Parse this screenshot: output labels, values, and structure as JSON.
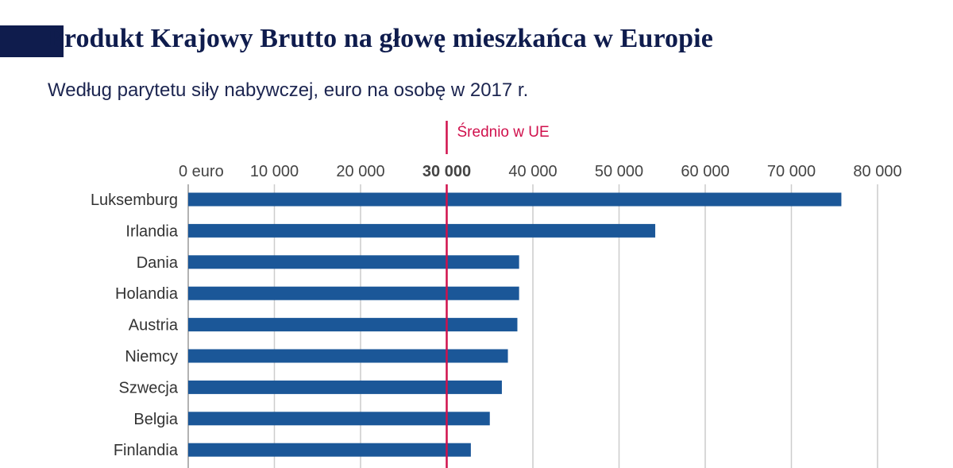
{
  "header": {
    "title": "Produkt Krajowy Brutto na głowę mieszkańca w Europie",
    "subtitle": "Według parytetu siły nabywczej, euro na osobę w 2017 r."
  },
  "chart_data": {
    "type": "bar",
    "orientation": "horizontal",
    "title": "Produkt Krajowy Brutto na głowę mieszkańca w Europie",
    "subtitle": "Według parytetu siły nabywczej, euro na osobę w 2017 r.",
    "categories": [
      "Luksemburg",
      "Irlandia",
      "Dania",
      "Holandia",
      "Austria",
      "Niemcy",
      "Szwecja",
      "Belgia",
      "Finlandia"
    ],
    "values": [
      75800,
      54200,
      38400,
      38400,
      38200,
      37100,
      36400,
      35000,
      32800
    ],
    "xlim": [
      0,
      80000
    ],
    "x_ticks": [
      {
        "value": 0,
        "label": "0 euro"
      },
      {
        "value": 10000,
        "label": "10 000"
      },
      {
        "value": 20000,
        "label": "20 000"
      },
      {
        "value": 30000,
        "label": "30 000"
      },
      {
        "value": 40000,
        "label": "40 000"
      },
      {
        "value": 50000,
        "label": "50 000"
      },
      {
        "value": 60000,
        "label": "60 000"
      },
      {
        "value": 70000,
        "label": "70 000"
      },
      {
        "value": 80000,
        "label": "80 000"
      }
    ],
    "axis_position": "top",
    "grid": true,
    "reference_line": {
      "value": 30000,
      "label": "Średnio w UE",
      "color": "#d0104c"
    },
    "colors": {
      "bar": "#1b5798",
      "grid": "#cccccc",
      "highlight": "#d0104c",
      "title": "#0f1c4d"
    }
  }
}
